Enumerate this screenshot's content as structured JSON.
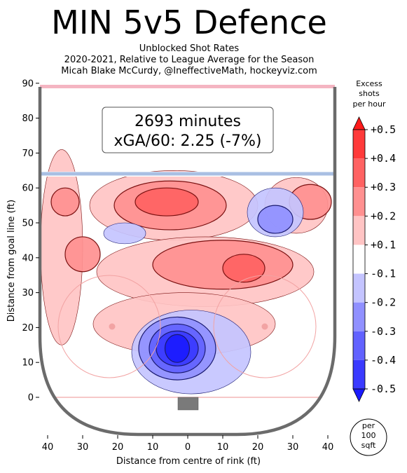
{
  "chart_data": {
    "type": "heatmap",
    "title": "MIN 5v5 Defence",
    "subtitles": [
      "Unblocked Shot Rates",
      "2020-2021, Relative to League Average for the Season",
      "Micah Blake McCurdy, @IneffectiveMath, hockeyviz.com"
    ],
    "xlabel": "Distance from centre of rink (ft)",
    "ylabel": "Distance from goal line (ft)",
    "xlim": [
      -42,
      42
    ],
    "ylim": [
      -11,
      90
    ],
    "xticks": [
      40,
      30,
      20,
      10,
      0,
      10,
      20,
      30,
      40
    ],
    "yticks": [
      0,
      10,
      20,
      30,
      40,
      50,
      60,
      70,
      80,
      90
    ],
    "annotation": {
      "line1": "2693 minutes",
      "line2": "xGA/60: 2.25 (-7%)"
    },
    "colorbar": {
      "title": [
        "Excess",
        "shots",
        "per hour"
      ],
      "unit": [
        "per",
        "100",
        "sqft"
      ],
      "ticks": [
        "+0.5",
        "+0.4",
        "+0.3",
        "+0.2",
        "+0.1",
        "-0.1",
        "-0.2",
        "-0.3",
        "-0.4",
        "-0.5"
      ],
      "colors": [
        "#ff1a1a",
        "#ff3a3a",
        "#ff6262",
        "#ff9090",
        "#ffc4c4",
        "#ffffff",
        "#c4c4ff",
        "#9090ff",
        "#6262ff",
        "#3a3aff",
        "#1a1aff"
      ]
    },
    "regions": [
      {
        "level": 0.1,
        "x": 31,
        "y": 55,
        "rx": 9,
        "ry": 8
      },
      {
        "level": 0.2,
        "x": 35,
        "y": 56,
        "rx": 6,
        "ry": 5
      },
      {
        "level": 0.1,
        "x": -4,
        "y": 55,
        "rx": 24,
        "ry": 10
      },
      {
        "level": 0.2,
        "x": -5,
        "y": 55,
        "rx": 16,
        "ry": 7
      },
      {
        "level": 0.3,
        "x": -6,
        "y": 56,
        "rx": 9,
        "ry": 4
      },
      {
        "level": 0.1,
        "x": 5,
        "y": 36,
        "rx": 31,
        "ry": 10
      },
      {
        "level": 0.2,
        "x": 10,
        "y": 38,
        "rx": 20,
        "ry": 7
      },
      {
        "level": 0.3,
        "x": 16,
        "y": 37,
        "rx": 6,
        "ry": 4
      },
      {
        "level": 0.1,
        "x": -36,
        "y": 43,
        "rx": 6,
        "ry": 28
      },
      {
        "level": 0.2,
        "x": -35,
        "y": 56,
        "rx": 4,
        "ry": 4
      },
      {
        "level": 0.2,
        "x": -30,
        "y": 41,
        "rx": 5,
        "ry": 5
      },
      {
        "level": 0.1,
        "x": -1,
        "y": 21,
        "rx": 26,
        "ry": 9
      },
      {
        "level": -0.1,
        "x": 25,
        "y": 53,
        "rx": 8,
        "ry": 7
      },
      {
        "level": -0.2,
        "x": 25,
        "y": 51,
        "rx": 5,
        "ry": 4
      },
      {
        "level": -0.1,
        "x": -18,
        "y": 47,
        "rx": 6,
        "ry": 3
      },
      {
        "level": -0.1,
        "x": 1,
        "y": 13,
        "rx": 17,
        "ry": 12
      },
      {
        "level": -0.2,
        "x": -3,
        "y": 14,
        "rx": 11,
        "ry": 9
      },
      {
        "level": -0.3,
        "x": -3,
        "y": 14,
        "rx": 8,
        "ry": 7
      },
      {
        "level": -0.4,
        "x": -3,
        "y": 14,
        "rx": 6,
        "ry": 5
      },
      {
        "level": -0.5,
        "x": -3,
        "y": 14,
        "rx": 3.5,
        "ry": 4
      }
    ]
  }
}
